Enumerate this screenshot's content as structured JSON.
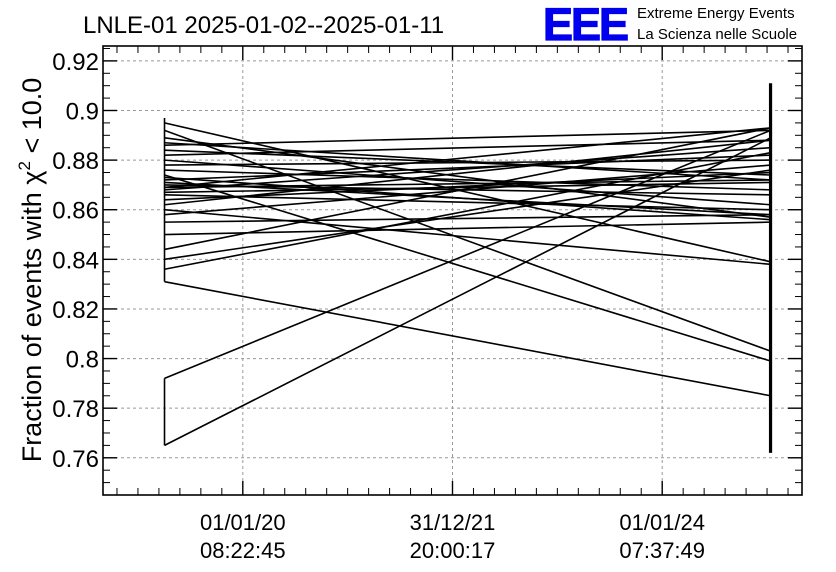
{
  "chart_data": {
    "type": "line",
    "title": "LNLE-01 2025-01-02--2025-01-11",
    "ylabel_prefix": "Fraction of events with ",
    "ylabel_chi": "χ",
    "ylabel_sup": "2",
    "ylabel_suffix": " < 10.0",
    "ylim": [
      0.745,
      0.926
    ],
    "yticks": [
      0.76,
      0.78,
      0.8,
      0.82,
      0.84,
      0.86,
      0.88,
      0.9,
      0.92
    ],
    "ytick_labels": [
      "0.76",
      "0.78",
      "0.8",
      "0.82",
      "0.84",
      "0.86",
      "0.88",
      "0.9",
      "0.92"
    ],
    "xlim": [
      0,
      1
    ],
    "xticks": [
      {
        "pos": 0.2,
        "line1": "01/01/20",
        "line2": "08:22:45"
      },
      {
        "pos": 0.5,
        "line1": "31/12/21",
        "line2": "20:00:17"
      },
      {
        "pos": 0.8,
        "line1": "01/01/24",
        "line2": "07:37:49"
      }
    ],
    "grid": true,
    "color": "#000000",
    "x_start": 0.088,
    "x_end": 0.955,
    "left_vertical": [
      [
        0.765,
        0.792
      ],
      [
        0.831,
        0.897
      ]
    ],
    "right_vertical": [
      0.762,
      0.911
    ],
    "series": [
      {
        "values": [
          0.765,
          0.889
        ]
      },
      {
        "values": [
          0.792,
          0.892
        ]
      },
      {
        "values": [
          0.831,
          0.785
        ]
      },
      {
        "values": [
          0.836,
          0.883
        ]
      },
      {
        "values": [
          0.84,
          0.876
        ]
      },
      {
        "values": [
          0.844,
          0.893
        ]
      },
      {
        "values": [
          0.85,
          0.855
        ]
      },
      {
        "values": [
          0.855,
          0.858
        ]
      },
      {
        "values": [
          0.858,
          0.878
        ]
      },
      {
        "values": [
          0.86,
          0.838
        ]
      },
      {
        "values": [
          0.862,
          0.888
        ]
      },
      {
        "values": [
          0.864,
          0.875
        ]
      },
      {
        "values": [
          0.866,
          0.86
        ]
      },
      {
        "values": [
          0.867,
          0.871
        ]
      },
      {
        "values": [
          0.868,
          0.885
        ]
      },
      {
        "values": [
          0.869,
          0.872
        ]
      },
      {
        "values": [
          0.87,
          0.866
        ]
      },
      {
        "values": [
          0.871,
          0.858
        ]
      },
      {
        "values": [
          0.872,
          0.882
        ]
      },
      {
        "values": [
          0.873,
          0.856
        ]
      },
      {
        "values": [
          0.874,
          0.799
        ]
      },
      {
        "values": [
          0.876,
          0.868
        ]
      },
      {
        "values": [
          0.878,
          0.88
        ]
      },
      {
        "values": [
          0.88,
          0.862
        ]
      },
      {
        "values": [
          0.882,
          0.888
        ]
      },
      {
        "values": [
          0.884,
          0.874
        ]
      },
      {
        "values": [
          0.886,
          0.892
        ]
      },
      {
        "values": [
          0.889,
          0.857
        ]
      },
      {
        "values": [
          0.892,
          0.803
        ]
      },
      {
        "values": [
          0.895,
          0.839
        ]
      },
      {
        "values": [
          0.887,
          0.872
        ]
      },
      {
        "values": [
          0.869,
          0.893
        ]
      }
    ]
  },
  "logo": {
    "mark": "EEE",
    "line1": "Extreme Energy Events",
    "line2": "La Scienza nelle Scuole",
    "color": "#0000ee"
  }
}
